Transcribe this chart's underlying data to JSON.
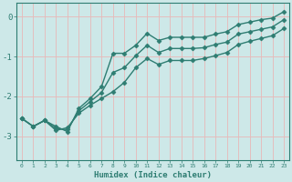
{
  "xlabel": "Humidex (Indice chaleur)",
  "xlim": [
    -0.5,
    23.5
  ],
  "ylim": [
    -3.6,
    0.35
  ],
  "yticks": [
    0,
    -1,
    -2,
    -3
  ],
  "xticks": [
    0,
    1,
    2,
    3,
    4,
    5,
    6,
    7,
    8,
    9,
    10,
    11,
    12,
    13,
    14,
    15,
    16,
    17,
    18,
    19,
    20,
    21,
    22,
    23
  ],
  "bg_color": "#cde8e8",
  "line_color": "#2e7d72",
  "grid_color": "#e8b8b8",
  "line1_x": [
    0,
    1,
    2,
    3,
    4,
    5,
    6,
    7,
    8,
    9,
    10,
    11,
    12,
    13,
    14,
    15,
    16,
    17,
    18,
    19,
    20,
    21,
    22,
    23
  ],
  "line1_y": [
    -2.55,
    -2.75,
    -2.6,
    -2.75,
    -2.88,
    -2.3,
    -2.05,
    -1.75,
    -0.92,
    -0.92,
    -0.72,
    -0.42,
    -0.6,
    -0.52,
    -0.52,
    -0.52,
    -0.52,
    -0.44,
    -0.38,
    -0.2,
    -0.14,
    -0.08,
    -0.04,
    0.12
  ],
  "line2_x": [
    0,
    1,
    2,
    3,
    4,
    5,
    6,
    7,
    8,
    9,
    10,
    11,
    12,
    13,
    14,
    15,
    16,
    17,
    18,
    19,
    20,
    21,
    22,
    23
  ],
  "line2_y": [
    -2.55,
    -2.75,
    -2.6,
    -2.85,
    -2.78,
    -2.42,
    -2.22,
    -2.05,
    -1.88,
    -1.65,
    -1.28,
    -1.05,
    -1.2,
    -1.1,
    -1.1,
    -1.1,
    -1.05,
    -0.98,
    -0.9,
    -0.7,
    -0.62,
    -0.55,
    -0.48,
    -0.3
  ],
  "line3_x": [
    0,
    1,
    2,
    3,
    4,
    5,
    6,
    7,
    8,
    9,
    10,
    11,
    12,
    13,
    14,
    15,
    16,
    17,
    18,
    19,
    20,
    21,
    22,
    23
  ],
  "line3_y": [
    -2.55,
    -2.75,
    -2.6,
    -2.8,
    -2.83,
    -2.36,
    -2.13,
    -1.9,
    -1.4,
    -1.28,
    -0.98,
    -0.72,
    -0.9,
    -0.8,
    -0.8,
    -0.8,
    -0.78,
    -0.7,
    -0.64,
    -0.44,
    -0.38,
    -0.32,
    -0.26,
    -0.08
  ],
  "marker": "D",
  "marker_size": 2.5,
  "linewidth": 1.0
}
